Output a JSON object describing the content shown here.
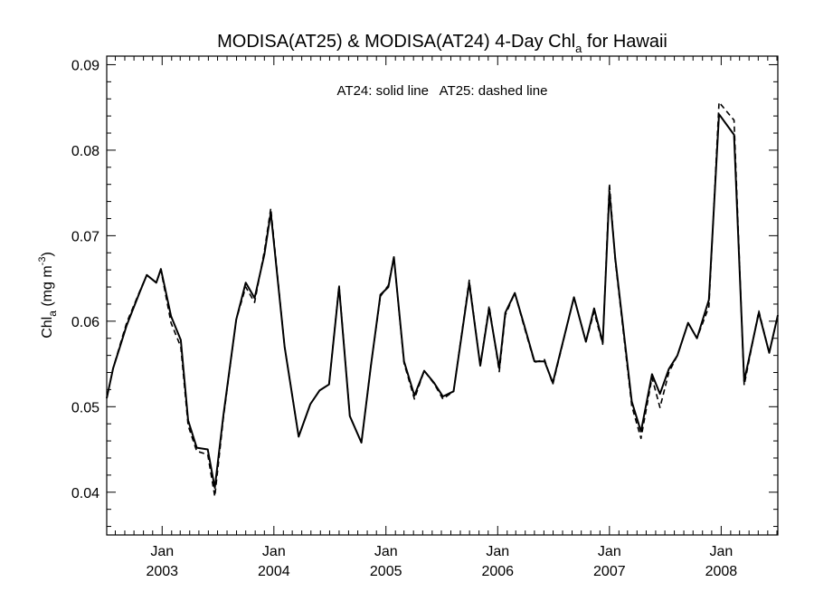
{
  "chart_data": {
    "type": "line",
    "title_main": "MODISA(AT25) & MODISA(AT24) 4-Day Chl",
    "title_sub": "a",
    "title_tail": " for Hawaii",
    "annotation": "AT24: solid line   AT25: dashed line",
    "ylabel_main": "Chl",
    "ylabel_sub": "a",
    "ylabel_units": " (mg m",
    "ylabel_exp": "-3",
    "ylabel_close": ")",
    "ylim": [
      0.035,
      0.091
    ],
    "xlim": [
      "2002-07-04",
      "2008-07-04"
    ],
    "yticks": [
      0.04,
      0.05,
      0.06,
      0.07,
      0.08,
      0.09
    ],
    "ytick_labels": [
      "0.04",
      "0.05",
      "0.06",
      "0.07",
      "0.08",
      "0.09"
    ],
    "xticks": [
      {
        "date": "2003-01-01",
        "month": "Jan",
        "year": "2003"
      },
      {
        "date": "2004-01-01",
        "month": "Jan",
        "year": "2004"
      },
      {
        "date": "2005-01-01",
        "month": "Jan",
        "year": "2005"
      },
      {
        "date": "2006-01-01",
        "month": "Jan",
        "year": "2006"
      },
      {
        "date": "2007-01-01",
        "month": "Jan",
        "year": "2007"
      },
      {
        "date": "2008-01-01",
        "month": "Jan",
        "year": "2008"
      }
    ],
    "series": [
      {
        "key": "at24",
        "style": "solid",
        "points": [
          [
            "2002-07-04",
            0.051
          ],
          [
            "2002-07-25",
            0.0545
          ],
          [
            "2002-08-16",
            0.057
          ],
          [
            "2002-09-07",
            0.0595
          ],
          [
            "2002-09-29",
            0.0615
          ],
          [
            "2002-10-21",
            0.0635
          ],
          [
            "2002-11-12",
            0.0654
          ],
          [
            "2002-12-13",
            0.0645
          ],
          [
            "2002-12-28",
            0.0661
          ],
          [
            "2003-01-30",
            0.0606
          ],
          [
            "2003-03-03",
            0.0578
          ],
          [
            "2003-03-27",
            0.0484
          ],
          [
            "2003-04-24",
            0.0452
          ],
          [
            "2003-05-30",
            0.045
          ],
          [
            "2003-06-22",
            0.0405
          ],
          [
            "2003-07-20",
            0.049
          ],
          [
            "2003-08-31",
            0.0602
          ],
          [
            "2003-10-01",
            0.0645
          ],
          [
            "2003-10-30",
            0.0627
          ],
          [
            "2003-12-01",
            0.0678
          ],
          [
            "2003-12-22",
            0.0727
          ],
          [
            "2004-02-05",
            0.057
          ],
          [
            "2004-03-22",
            0.0465
          ],
          [
            "2004-04-29",
            0.0503
          ],
          [
            "2004-05-29",
            0.0519
          ],
          [
            "2004-06-29",
            0.0526
          ],
          [
            "2004-08-01",
            0.064
          ],
          [
            "2004-09-05",
            0.0489
          ],
          [
            "2004-10-13",
            0.0458
          ],
          [
            "2004-11-13",
            0.0548
          ],
          [
            "2004-12-14",
            0.0631
          ],
          [
            "2005-01-09",
            0.064
          ],
          [
            "2005-01-27",
            0.0675
          ],
          [
            "2005-03-01",
            0.0553
          ],
          [
            "2005-04-04",
            0.0513
          ],
          [
            "2005-05-06",
            0.0542
          ],
          [
            "2005-06-07",
            0.0528
          ],
          [
            "2005-07-06",
            0.0512
          ],
          [
            "2005-08-10",
            0.0518
          ],
          [
            "2005-09-30",
            0.0645
          ],
          [
            "2005-11-05",
            0.0548
          ],
          [
            "2005-12-04",
            0.0615
          ],
          [
            "2006-01-06",
            0.0545
          ],
          [
            "2006-01-26",
            0.061
          ],
          [
            "2006-02-26",
            0.0633
          ],
          [
            "2006-03-28",
            0.0596
          ],
          [
            "2006-05-01",
            0.0553
          ],
          [
            "2006-06-03",
            0.0553
          ],
          [
            "2006-06-30",
            0.0528
          ],
          [
            "2006-09-07",
            0.0628
          ],
          [
            "2006-10-16",
            0.0576
          ],
          [
            "2006-11-12",
            0.0615
          ],
          [
            "2006-12-10",
            0.0575
          ],
          [
            "2007-01-01",
            0.0752
          ],
          [
            "2007-01-20",
            0.0673
          ],
          [
            "2007-03-15",
            0.0506
          ],
          [
            "2007-04-14",
            0.0471
          ],
          [
            "2007-05-20",
            0.0538
          ],
          [
            "2007-06-15",
            0.0515
          ],
          [
            "2007-07-14",
            0.0544
          ],
          [
            "2007-08-11",
            0.056
          ],
          [
            "2007-09-15",
            0.0598
          ],
          [
            "2007-10-14",
            0.058
          ],
          [
            "2007-11-22",
            0.0625
          ],
          [
            "2007-12-25",
            0.0842
          ],
          [
            "2008-02-12",
            0.0818
          ],
          [
            "2008-03-16",
            0.053
          ],
          [
            "2008-05-03",
            0.061
          ],
          [
            "2008-06-06",
            0.0563
          ],
          [
            "2008-07-04",
            0.0607
          ]
        ]
      },
      {
        "key": "at25",
        "style": "dashed",
        "points": [
          [
            "2002-07-04",
            0.051
          ],
          [
            "2002-07-25",
            0.0545
          ],
          [
            "2002-08-16",
            0.0572
          ],
          [
            "2002-09-07",
            0.0598
          ],
          [
            "2002-09-29",
            0.0617
          ],
          [
            "2002-10-21",
            0.0636
          ],
          [
            "2002-11-12",
            0.0654
          ],
          [
            "2002-12-13",
            0.0645
          ],
          [
            "2002-12-28",
            0.066
          ],
          [
            "2003-01-30",
            0.0598
          ],
          [
            "2003-03-03",
            0.057
          ],
          [
            "2003-03-27",
            0.0478
          ],
          [
            "2003-04-24",
            0.0448
          ],
          [
            "2003-05-30",
            0.0444
          ],
          [
            "2003-06-22",
            0.0395
          ],
          [
            "2003-07-20",
            0.0487
          ],
          [
            "2003-08-31",
            0.0602
          ],
          [
            "2003-10-01",
            0.064
          ],
          [
            "2003-10-30",
            0.0622
          ],
          [
            "2003-12-01",
            0.0682
          ],
          [
            "2003-12-22",
            0.0732
          ],
          [
            "2004-02-05",
            0.057
          ],
          [
            "2004-03-22",
            0.0465
          ],
          [
            "2004-04-29",
            0.0503
          ],
          [
            "2004-05-29",
            0.0519
          ],
          [
            "2004-06-29",
            0.0526
          ],
          [
            "2004-08-01",
            0.0642
          ],
          [
            "2004-09-05",
            0.0489
          ],
          [
            "2004-10-13",
            0.0458
          ],
          [
            "2004-11-13",
            0.0548
          ],
          [
            "2004-12-14",
            0.0629
          ],
          [
            "2005-01-09",
            0.0642
          ],
          [
            "2005-01-27",
            0.0675
          ],
          [
            "2005-03-01",
            0.0551
          ],
          [
            "2005-04-04",
            0.0509
          ],
          [
            "2005-05-06",
            0.0542
          ],
          [
            "2005-06-07",
            0.0527
          ],
          [
            "2005-07-06",
            0.0509
          ],
          [
            "2005-08-10",
            0.0518
          ],
          [
            "2005-09-30",
            0.0648
          ],
          [
            "2005-11-05",
            0.0548
          ],
          [
            "2005-12-04",
            0.0618
          ],
          [
            "2006-01-06",
            0.0541
          ],
          [
            "2006-01-26",
            0.0607
          ],
          [
            "2006-02-26",
            0.0633
          ],
          [
            "2006-03-28",
            0.0594
          ],
          [
            "2006-05-01",
            0.0552
          ],
          [
            "2006-06-03",
            0.0555
          ],
          [
            "2006-06-30",
            0.0526
          ],
          [
            "2006-09-07",
            0.0628
          ],
          [
            "2006-10-16",
            0.0576
          ],
          [
            "2006-11-12",
            0.0611
          ],
          [
            "2006-12-10",
            0.0573
          ],
          [
            "2007-01-01",
            0.0761
          ],
          [
            "2007-01-20",
            0.067
          ],
          [
            "2007-03-15",
            0.0501
          ],
          [
            "2007-04-14",
            0.0463
          ],
          [
            "2007-05-20",
            0.0534
          ],
          [
            "2007-06-15",
            0.0499
          ],
          [
            "2007-07-14",
            0.054
          ],
          [
            "2007-08-11",
            0.056
          ],
          [
            "2007-09-15",
            0.0598
          ],
          [
            "2007-10-14",
            0.058
          ],
          [
            "2007-11-22",
            0.0617
          ],
          [
            "2007-12-25",
            0.0856
          ],
          [
            "2008-02-12",
            0.0835
          ],
          [
            "2008-03-16",
            0.0525
          ],
          [
            "2008-05-03",
            0.0612
          ],
          [
            "2008-06-06",
            0.0563
          ],
          [
            "2008-07-04",
            0.0607
          ]
        ]
      }
    ]
  }
}
